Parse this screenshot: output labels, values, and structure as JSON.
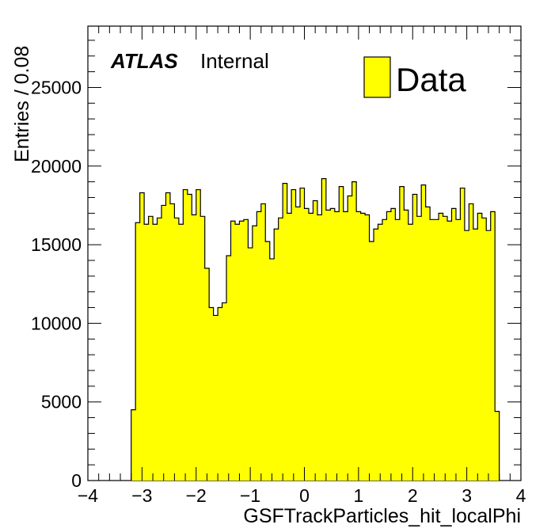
{
  "chart_data": {
    "type": "bar",
    "style": "histogram",
    "xlabel": "GSFTrackParticles_hit_localPhi",
    "ylabel": "Entries / 0.08",
    "xlim": [
      -4,
      4
    ],
    "ylim": [
      0,
      28900
    ],
    "x_ticks": [
      "−4",
      "−3",
      "−2",
      "−1",
      "0",
      "1",
      "2",
      "3",
      "4"
    ],
    "y_ticks": [
      "0",
      "5000",
      "10000",
      "15000",
      "20000",
      "25000"
    ],
    "bin_width": 0.08,
    "bin_start": -3.2,
    "series": [
      {
        "name": "Data",
        "color": "#ffff00",
        "values": [
          4500,
          16400,
          18300,
          16300,
          16800,
          16300,
          16700,
          17500,
          18300,
          17600,
          16700,
          16300,
          18500,
          18200,
          16900,
          18500,
          16800,
          13500,
          11000,
          10500,
          11000,
          11300,
          14300,
          16500,
          16300,
          16500,
          16600,
          14800,
          16200,
          17100,
          17600,
          15200,
          14100,
          16000,
          16700,
          18900,
          17000,
          18500,
          17400,
          18600,
          17300,
          17000,
          17800,
          16900,
          19200,
          17200,
          17300,
          17100,
          18700,
          17100,
          18100,
          19000,
          17100,
          17000,
          16900,
          15200,
          16000,
          16300,
          16600,
          17100,
          17300,
          16600,
          18700,
          17200,
          16300,
          18200,
          16800,
          18800,
          17400,
          16600,
          16600,
          17000,
          16800,
          16500,
          17300,
          16600,
          18600,
          15900,
          17600,
          16000,
          17000,
          16700,
          15900,
          17100,
          4400
        ]
      }
    ],
    "legend": {
      "position": "top-right",
      "label": "Data"
    },
    "annotation": {
      "bold": "ATLAS",
      "text": "Internal"
    },
    "grid": false
  }
}
